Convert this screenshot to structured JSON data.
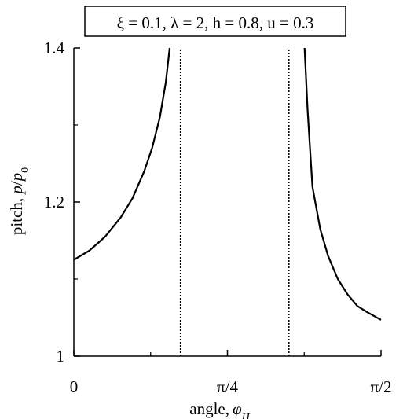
{
  "chart_data": {
    "type": "line",
    "title": "ξ = 0.1, λ = 2, h = 0.8, u = 0.3",
    "xlabel": "angle, φH",
    "ylabel": "pitch, p/p0",
    "xlim": [
      0,
      1.5708
    ],
    "ylim": [
      1.0,
      1.4
    ],
    "xticks": [
      0,
      0.7854,
      1.5708
    ],
    "xtick_labels": [
      "0",
      "π/4",
      "π/2"
    ],
    "yticks": [
      1.0,
      1.2,
      1.4
    ],
    "ytick_labels": [
      "1",
      "1.2",
      "1.4"
    ],
    "grid": false,
    "series": [
      {
        "line_style": "solid",
        "x": [
          0,
          0.08,
          0.16,
          0.24,
          0.3,
          0.36,
          0.4,
          0.44,
          0.47,
          0.49
        ],
        "y": [
          1.125,
          1.137,
          1.155,
          1.18,
          1.205,
          1.24,
          1.27,
          1.31,
          1.355,
          1.4
        ]
      },
      {
        "line_style": "solid",
        "x": [
          1.18,
          1.195,
          1.22,
          1.26,
          1.3,
          1.35,
          1.4,
          1.45,
          1.5,
          1.5708
        ],
        "y": [
          1.4,
          1.32,
          1.22,
          1.165,
          1.13,
          1.1,
          1.08,
          1.065,
          1.057,
          1.047
        ]
      }
    ],
    "asymptotes": [
      {
        "x": 0.545,
        "line_style": "dotted"
      },
      {
        "x": 1.1,
        "line_style": "dotted"
      }
    ]
  }
}
